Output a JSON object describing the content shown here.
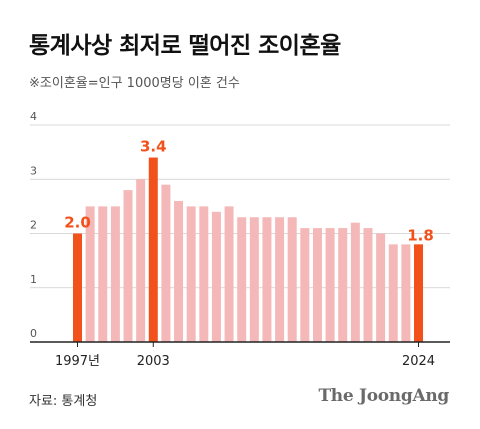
{
  "title": "통계사상 최저로 떨어진 조이혼율",
  "subtitle": "※조이혼율=인구 1000명당 이혼 건수",
  "source": "자료: 통계청",
  "logo": "The JoongAng",
  "colors": {
    "bar": "#f5b8b8",
    "highlight": "#f2511b",
    "grid": "#cccccc",
    "axis": "#222222",
    "tick": "#555555"
  },
  "chart_data": {
    "type": "bar",
    "categories": [
      "1997",
      "1998",
      "1999",
      "2000",
      "2001",
      "2002",
      "2003",
      "2004",
      "2005",
      "2006",
      "2007",
      "2008",
      "2009",
      "2010",
      "2011",
      "2012",
      "2013",
      "2014",
      "2015",
      "2016",
      "2017",
      "2018",
      "2019",
      "2020",
      "2021",
      "2022",
      "2023",
      "2024"
    ],
    "values": [
      2.0,
      2.5,
      2.5,
      2.5,
      2.8,
      3.0,
      3.4,
      2.9,
      2.6,
      2.5,
      2.5,
      2.4,
      2.5,
      2.3,
      2.3,
      2.3,
      2.3,
      2.3,
      2.1,
      2.1,
      2.1,
      2.1,
      2.2,
      2.1,
      2.0,
      1.8,
      1.8,
      1.8
    ],
    "highlighted": [
      "1997",
      "2003",
      "2024"
    ],
    "data_labels": [
      {
        "category": "1997",
        "text": "2.0"
      },
      {
        "category": "2003",
        "text": "3.4"
      },
      {
        "category": "2024",
        "text": "1.8"
      }
    ],
    "x_tick_labels": [
      {
        "category": "1997",
        "text": "1997년"
      },
      {
        "category": "2003",
        "text": "2003"
      },
      {
        "category": "2024",
        "text": "2024"
      }
    ],
    "y_ticks": [
      {
        "value": 0,
        "text": "0"
      },
      {
        "value": 1,
        "text": "1"
      },
      {
        "value": 2,
        "text": "2"
      },
      {
        "value": 3,
        "text": "3"
      },
      {
        "value": 4,
        "text": "4"
      }
    ],
    "ylim": [
      0,
      4
    ],
    "grid": true,
    "legend": "none"
  }
}
